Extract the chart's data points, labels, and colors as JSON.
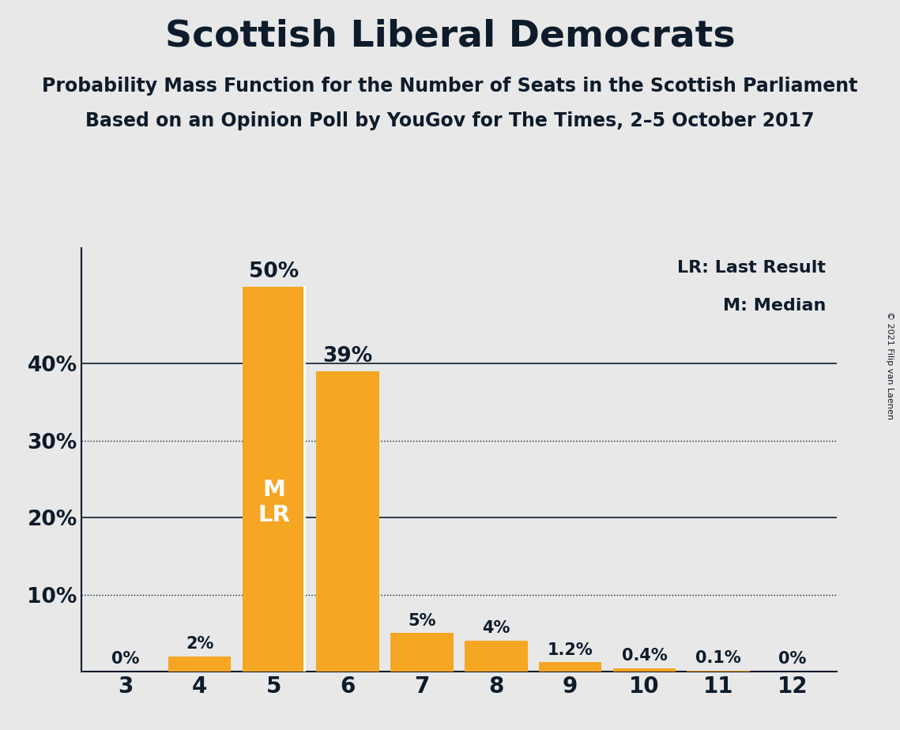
{
  "title": "Scottish Liberal Democrats",
  "subtitle1": "Probability Mass Function for the Number of Seats in the Scottish Parliament",
  "subtitle2": "Based on an Opinion Poll by YouGov for The Times, 2–5 October 2017",
  "copyright": "© 2021 Filip van Laenen",
  "categories": [
    3,
    4,
    5,
    6,
    7,
    8,
    9,
    10,
    11,
    12
  ],
  "values": [
    0,
    2,
    50,
    39,
    5,
    4,
    1.2,
    0.4,
    0.1,
    0
  ],
  "bar_color_hex": "#F5A623",
  "background_color": "#E8E8E8",
  "text_color": "#0D1B2A",
  "bar_labels": [
    "0%",
    "2%",
    "50%",
    "39%",
    "5%",
    "4%",
    "1.2%",
    "0.4%",
    "0.1%",
    "0%"
  ],
  "solid_gridlines": [
    20,
    40
  ],
  "dotted_gridlines": [
    10,
    30
  ],
  "ylim": [
    0,
    55
  ],
  "median_seat": 5,
  "last_result_seat": 5,
  "legend_lr": "LR: Last Result",
  "legend_m": "M: Median",
  "title_fontsize": 34,
  "subtitle_fontsize": 17,
  "bar_label_fontsize_large": 19,
  "bar_label_fontsize_small": 15,
  "inside_label_fontsize": 21,
  "legend_fontsize": 16,
  "tick_fontsize": 19,
  "copyright_fontsize": 8
}
